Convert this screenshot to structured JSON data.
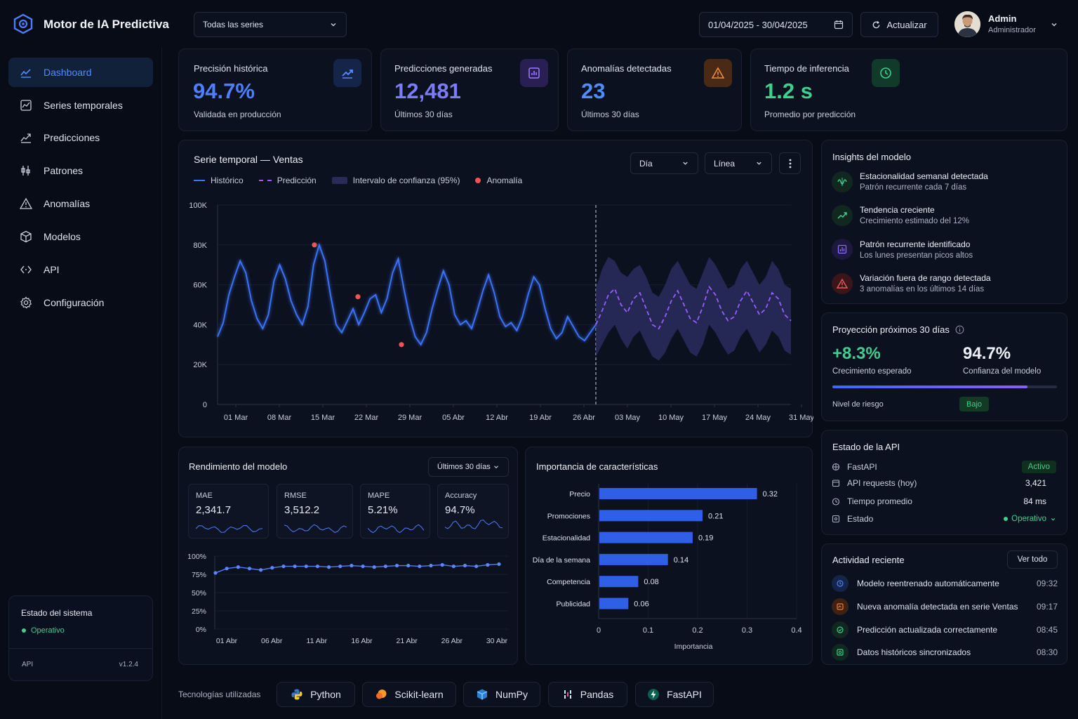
{
  "app": {
    "title": "Motor de IA Predictiva"
  },
  "header": {
    "series_select": "Todas las series",
    "date_range": "01/04/2025 - 30/04/2025",
    "refresh_label": "Actualizar",
    "user_name": "Admin",
    "user_role": "Administrador"
  },
  "sidebar": {
    "items": [
      {
        "label": "Dashboard",
        "icon": "chart-line-icon"
      },
      {
        "label": "Series temporales",
        "icon": "timeseries-icon"
      },
      {
        "label": "Predicciones",
        "icon": "trend-icon"
      },
      {
        "label": "Patrones",
        "icon": "pattern-icon"
      },
      {
        "label": "Anomalías",
        "icon": "warning-icon"
      },
      {
        "label": "Modelos",
        "icon": "cube-icon"
      },
      {
        "label": "API",
        "icon": "code-icon"
      },
      {
        "label": "Configuración",
        "icon": "gear-icon"
      }
    ],
    "status_title": "Estado del sistema",
    "status_value": "Operativo",
    "api_label": "API",
    "api_version": "v1.2.4"
  },
  "kpis": [
    {
      "title": "Precisión histórica",
      "value": "94.7%",
      "sub": "Validada en producción",
      "color": "#4f7dff",
      "icon": "trend-up-icon"
    },
    {
      "title": "Predicciones generadas",
      "value": "12,481",
      "sub": "Últimos 30 días",
      "color": "#7d7cf5",
      "icon": "bar-chart-icon"
    },
    {
      "title": "Anomalías detectadas",
      "value": "23",
      "sub": "Últimos 30 días",
      "color": "#4d8dff",
      "icon": "warning-icon"
    },
    {
      "title": "Tiempo de inferencia",
      "value": "1.2 s",
      "sub": "Promedio por predicción",
      "color": "#3fcf8e",
      "icon": "clock-icon"
    }
  ],
  "timeseries": {
    "title": "Serie temporal — Ventas",
    "granularity": "Día",
    "chart_type_select": "Línea",
    "legend": [
      "Histórico",
      "Predicción",
      "Intervalo de confianza (95%)",
      "Anomalía"
    ]
  },
  "chart_data": [
    {
      "type": "line",
      "title": "Serie temporal — Ventas",
      "x_start": "01 Mar",
      "forecast_start": "26 Abr",
      "xticks": [
        "01 Mar",
        "08 Mar",
        "15 Mar",
        "22 Mar",
        "29 Mar",
        "05 Abr",
        "12 Abr",
        "19 Abr",
        "26 Abr",
        "03 May",
        "10 May",
        "17 May",
        "24 May",
        "31 May"
      ],
      "yticks": [
        "100K",
        "80K",
        "60K",
        "40K",
        "20K",
        "0"
      ],
      "ylim": [
        0,
        100000
      ],
      "series": [
        {
          "name": "Histórico",
          "values": [
            34000,
            41000,
            55000,
            64000,
            72000,
            66000,
            52000,
            43000,
            38000,
            45000,
            62000,
            70000,
            63000,
            52000,
            45000,
            40000,
            49000,
            70000,
            80000,
            72000,
            55000,
            40000,
            36000,
            42000,
            48000,
            40000,
            46000,
            53000,
            55000,
            46000,
            53000,
            66000,
            73000,
            58000,
            44000,
            34000,
            30000,
            36000,
            48000,
            58000,
            67000,
            60000,
            45000,
            40000,
            42000,
            38000,
            47000,
            57000,
            65000,
            56000,
            44000,
            39000,
            41000,
            37000,
            44000,
            55000,
            64000,
            60000,
            48000,
            38000,
            33000,
            36000,
            44000,
            39000,
            34000,
            32000,
            36000,
            40000
          ]
        },
        {
          "name": "Predicción",
          "values": [
            40000,
            47000,
            55000,
            58000,
            50000,
            46000,
            53000,
            56000,
            48000,
            40000,
            38000,
            44000,
            52000,
            57000,
            50000,
            43000,
            41000,
            49000,
            59000,
            55000,
            47000,
            42000,
            44000,
            52000,
            57000,
            51000,
            45000,
            48000,
            56000,
            53000,
            45000,
            42000
          ]
        },
        {
          "name": "Intervalo de confianza (95%) superior",
          "values": [
            58000,
            68000,
            74000,
            72000,
            66000,
            64000,
            68000,
            70000,
            64000,
            56000,
            54000,
            60000,
            68000,
            72000,
            66000,
            60000,
            58000,
            66000,
            74000,
            70000,
            64000,
            58000,
            60000,
            68000,
            72000,
            66000,
            60000,
            64000,
            72000,
            68000,
            60000,
            58000
          ]
        },
        {
          "name": "Intervalo de confianza (95%) inferior",
          "values": [
            24000,
            30000,
            36000,
            40000,
            33000,
            28000,
            34000,
            37000,
            30000,
            24000,
            22000,
            26000,
            33000,
            38000,
            32000,
            26000,
            24000,
            30000,
            40000,
            36000,
            30000,
            25000,
            27000,
            34000,
            38000,
            32000,
            26000,
            30000,
            37000,
            34000,
            27000,
            25000
          ]
        }
      ],
      "anomalies": [
        {
          "x": "15 Mar",
          "y": 80000
        },
        {
          "x": "22 Mar",
          "y": 54000
        },
        {
          "x": "29 Mar",
          "y": 30000
        }
      ]
    },
    {
      "type": "line",
      "title": "Rendimiento del modelo",
      "xticks": [
        "01 Abr",
        "06 Abr",
        "11 Abr",
        "16 Abr",
        "21 Abr",
        "26 Abr",
        "30 Abr"
      ],
      "yticks": [
        "100%",
        "75%",
        "50%",
        "25%",
        "0%"
      ],
      "ylim": [
        0,
        100
      ],
      "series": [
        {
          "name": "Accuracy",
          "values": [
            77,
            83,
            85,
            83,
            81,
            84,
            86,
            86,
            86,
            86,
            85,
            86,
            87,
            86,
            85,
            86,
            87,
            87,
            86,
            87,
            88,
            86,
            87,
            86,
            88,
            89
          ]
        }
      ]
    },
    {
      "type": "bar",
      "title": "Importancia de características",
      "orientation": "horizontal",
      "categories": [
        "Precio",
        "Promociones",
        "Estacionalidad",
        "Día de la semana",
        "Competencia",
        "Publicidad"
      ],
      "values": [
        0.32,
        0.21,
        0.19,
        0.14,
        0.08,
        0.06
      ],
      "value_labels": [
        "0.32",
        "0.21",
        "0.19",
        "0.14",
        "0.08",
        "0.06"
      ],
      "xticks": [
        "0",
        "0.1",
        "0.2",
        "0.3",
        "0.4"
      ],
      "xlabel": "Importancia",
      "xlim": [
        0,
        0.4
      ]
    }
  ],
  "performance": {
    "title": "Rendimiento del modelo",
    "range_select": "Últimos 30 días",
    "metrics": [
      {
        "label": "MAE",
        "value": "2,341.7"
      },
      {
        "label": "RMSE",
        "value": "3,512.2"
      },
      {
        "label": "MAPE",
        "value": "5.21%"
      },
      {
        "label": "Accuracy",
        "value": "94.7%"
      }
    ]
  },
  "features": {
    "title": "Importancia de características"
  },
  "insights": {
    "title": "Insights del modelo",
    "items": [
      {
        "title": "Estacionalidad semanal detectada",
        "sub": "Patrón recurrente cada 7 días",
        "icon": "seasonality-icon",
        "color": "#3fcf8e"
      },
      {
        "title": "Tendencia creciente",
        "sub": "Crecimiento estimado del 12%",
        "icon": "trend-up-icon",
        "color": "#3fcf8e"
      },
      {
        "title": "Patrón recurrente identificado",
        "sub": "Los lunes presentan picos altos",
        "icon": "pattern-chart-icon",
        "color": "#8a6cff"
      },
      {
        "title": "Variación fuera de rango detectada",
        "sub": "3 anomalías en los últimos 14 días",
        "icon": "warning-icon",
        "color": "#ef5a5a"
      }
    ]
  },
  "projection": {
    "title": "Proyección próximos 30 días",
    "growth": "+8.3%",
    "growth_label": "Crecimiento esperado",
    "confidence": "94.7%",
    "confidence_label": "Confianza del modelo",
    "confidence_level": 0.87,
    "risk_label": "Nivel de riesgo",
    "risk_value": "Bajo"
  },
  "api_status": {
    "title": "Estado de la API",
    "rows": [
      {
        "label": "FastAPI",
        "value": "Activo",
        "icon": "api-icon"
      },
      {
        "label": "API requests (hoy)",
        "value": "3,421",
        "icon": "calendar-icon"
      },
      {
        "label": "Tiempo promedio",
        "value": "84 ms",
        "icon": "timer-icon"
      },
      {
        "label": "Estado",
        "value": "Operativo",
        "icon": "server-icon"
      }
    ]
  },
  "activity": {
    "title": "Actividad reciente",
    "view_all": "Ver todo",
    "items": [
      {
        "text": "Modelo reentrenado automáticamente",
        "time": "09:32",
        "color": "#4f7dff"
      },
      {
        "text": "Nueva anomalía detectada en serie Ventas",
        "time": "09:17",
        "color": "#f07b3f"
      },
      {
        "text": "Predicción actualizada correctamente",
        "time": "08:45",
        "color": "#3fcf8e"
      },
      {
        "text": "Datos históricos sincronizados",
        "time": "08:30",
        "color": "#3fcf8e"
      }
    ]
  },
  "footer": {
    "label": "Tecnologías utilizadas",
    "techs": [
      "Python",
      "Scikit-learn",
      "NumPy",
      "Pandas",
      "FastAPI"
    ]
  }
}
